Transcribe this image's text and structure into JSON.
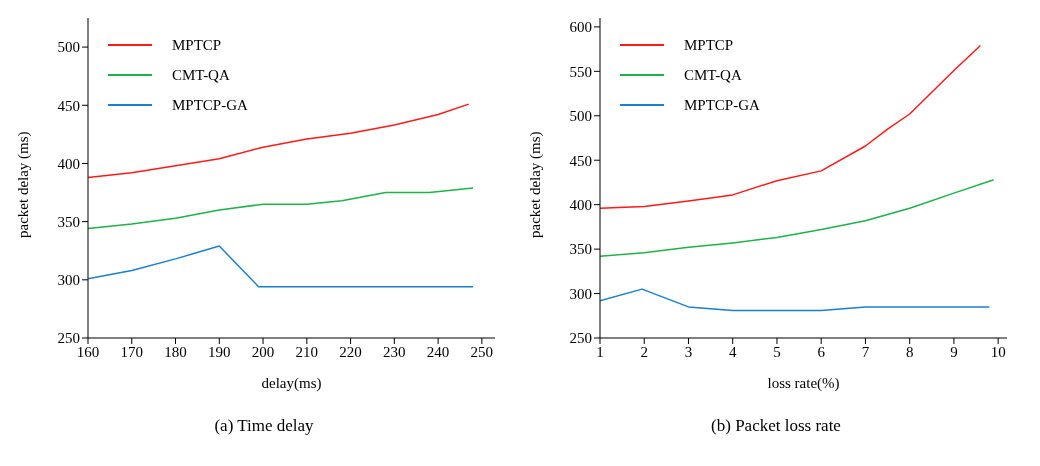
{
  "chart_data": [
    {
      "type": "line",
      "annotations": [
        "(a) Time delay"
      ],
      "xlabel": "delay(ms)",
      "ylabel": "packet delay (ms)",
      "xlim": [
        160,
        253
      ],
      "xticks": [
        160,
        170,
        180,
        190,
        200,
        210,
        220,
        230,
        240,
        250
      ],
      "ylim": [
        250,
        525
      ],
      "yticks": [
        250,
        300,
        350,
        400,
        450,
        500
      ],
      "legend": "top left",
      "series": [
        {
          "name": "MPTCP",
          "color": "#ff1a1a",
          "x": [
            160,
            170,
            180,
            190,
            200,
            210,
            220,
            230,
            240,
            247
          ],
          "values": [
            388,
            392,
            398,
            404,
            414,
            421,
            426,
            433,
            442,
            451
          ]
        },
        {
          "name": "CMT-QA",
          "color": "#1db34a",
          "x": [
            160,
            170,
            180,
            190,
            200,
            210,
            218,
            228,
            238,
            248
          ],
          "values": [
            344,
            348,
            353,
            360,
            365,
            365,
            368,
            375,
            375,
            379
          ]
        },
        {
          "name": "MPTCP-GA",
          "color": "#1a7fd4",
          "x": [
            160,
            170,
            180,
            190,
            199,
            248
          ],
          "values": [
            301,
            308,
            318,
            329,
            294,
            294
          ]
        }
      ]
    },
    {
      "type": "line",
      "annotations": [
        "(b) Packet loss rate"
      ],
      "xlabel": "loss rate(%)",
      "ylabel": "packet delay (ms)",
      "xlim": [
        1,
        10.2
      ],
      "xticks": [
        1,
        2,
        3,
        4,
        5,
        6,
        7,
        8,
        9,
        10
      ],
      "ylim": [
        250,
        610
      ],
      "yticks": [
        250,
        300,
        350,
        400,
        450,
        500,
        550,
        600
      ],
      "legend": "top left",
      "series": [
        {
          "name": "MPTCP",
          "color": "#ff1a1a",
          "x": [
            1,
            2,
            3,
            4,
            5,
            6,
            7,
            7.5,
            8,
            9,
            9.6
          ],
          "values": [
            396,
            398,
            404,
            411,
            427,
            438,
            466,
            485,
            502,
            551,
            579
          ]
        },
        {
          "name": "CMT-QA",
          "color": "#1db34a",
          "x": [
            1,
            2,
            3,
            4,
            5,
            6,
            7,
            8,
            9,
            9.9
          ],
          "values": [
            342,
            346,
            352,
            357,
            363,
            372,
            382,
            396,
            413,
            428
          ]
        },
        {
          "name": "MPTCP-GA",
          "color": "#1a7fd4",
          "x": [
            1,
            1.95,
            3,
            4,
            6,
            7,
            9.8
          ],
          "values": [
            292,
            305,
            285,
            281,
            281,
            285,
            285
          ]
        }
      ]
    }
  ]
}
